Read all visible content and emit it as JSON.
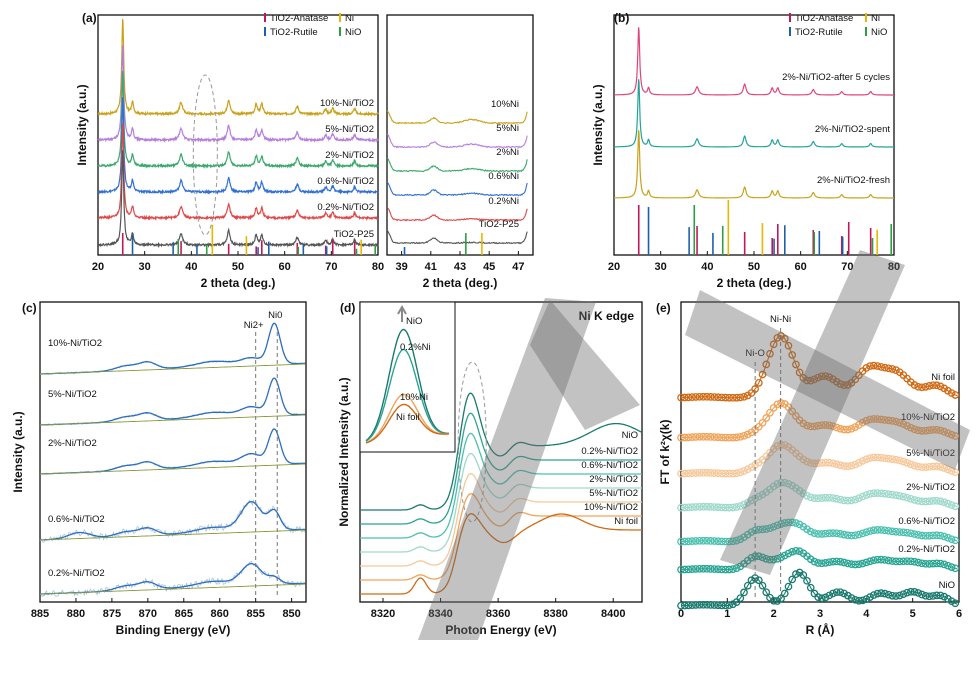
{
  "chart_data": [
    {
      "panel": "(a)",
      "type": "line",
      "xlabel": "2 theta (deg.)",
      "ylabel": "Intensity (a.u.)",
      "xlim": [
        20,
        80
      ],
      "xticks": [
        20,
        30,
        40,
        50,
        60,
        70,
        80
      ],
      "legend": [
        "TiO2-Anatase",
        "Ni",
        "TiO2-Rutile",
        "NiO"
      ],
      "series": [
        {
          "name": "10%-Ni/TiO2",
          "color": "#c9a21a"
        },
        {
          "name": "5%-Ni/TiO2",
          "color": "#b57edc"
        },
        {
          "name": "2%-Ni/TiO2",
          "color": "#3aa86b"
        },
        {
          "name": "0.6%-Ni/TiO2",
          "color": "#2f6fd6"
        },
        {
          "name": "0.2%-Ni/TiO2",
          "color": "#e04848"
        },
        {
          "name": "TiO2-P25",
          "color": "#555555"
        }
      ],
      "ref_lines": {
        "anatase": [
          25.3,
          37.8,
          48.0,
          53.9,
          55.1,
          62.7,
          68.8,
          70.3,
          75.0
        ],
        "rutile": [
          27.4,
          36.1,
          41.2,
          54.3,
          56.6,
          64.0,
          69.0
        ],
        "Ni": [
          44.5,
          51.8,
          76.4
        ],
        "NiO": [
          37.2,
          43.3,
          62.9,
          75.4,
          79.4
        ]
      }
    },
    {
      "panel": "(a-zoom)",
      "type": "line",
      "xlabel": "2 theta (deg.)",
      "xlim": [
        38,
        48
      ],
      "xticks": [
        39,
        41,
        43,
        45,
        47
      ],
      "series": [
        "10%Ni",
        "5%Ni",
        "2%Ni",
        "0.6%Ni",
        "0.2%Ni",
        "TiO2-P25"
      ]
    },
    {
      "panel": "(b)",
      "type": "line",
      "xlabel": "2 theta (deg.)",
      "ylabel": "Intensity (a.u.)",
      "xlim": [
        20,
        80
      ],
      "xticks": [
        20,
        30,
        40,
        50,
        60,
        70,
        80
      ],
      "legend": [
        "TiO2-Anatase",
        "Ni",
        "TiO2-Rutile",
        "NiO"
      ],
      "series": [
        {
          "name": "2%-Ni/TiO2-after 5 cycles",
          "color": "#e0457a"
        },
        {
          "name": "2%-Ni/TiO2-spent",
          "color": "#22a39a"
        },
        {
          "name": "2%-Ni/TiO2-fresh",
          "color": "#c9a21a"
        }
      ]
    },
    {
      "panel": "(c)",
      "type": "line",
      "xlabel": "Binding Energy (eV)",
      "ylabel": "Intensity (a.u.)",
      "xlim": [
        885,
        848
      ],
      "xticks": [
        885,
        880,
        875,
        870,
        865,
        860,
        855,
        850
      ],
      "markers": [
        {
          "label": "Ni2+",
          "x": 855.0
        },
        {
          "label": "Ni0",
          "x": 852.0
        }
      ],
      "series": [
        "10%-Ni/TiO2",
        "5%-Ni/TiO2",
        "2%-Ni/TiO2",
        "0.6%-Ni/TiO2",
        "0.2%-Ni/TiO2"
      ]
    },
    {
      "panel": "(d)",
      "type": "line",
      "title": "Ni K edge",
      "xlabel": "Photon Energy (eV)",
      "ylabel": "Normalized Intensity (a.u.)",
      "xlim": [
        8312,
        8410
      ],
      "xticks": [
        8320,
        8340,
        8360,
        8380,
        8400
      ],
      "series": [
        {
          "name": "NiO",
          "color": "#1a7a6e"
        },
        {
          "name": "0.2%-Ni/TiO2",
          "color": "#2aa593"
        },
        {
          "name": "0.6%-Ni/TiO2",
          "color": "#4cc0ae"
        },
        {
          "name": "2%-Ni/TiO2",
          "color": "#9fd9cb"
        },
        {
          "name": "5%-Ni/TiO2",
          "color": "#f6c89a"
        },
        {
          "name": "10%-Ni/TiO2",
          "color": "#f0a35a"
        },
        {
          "name": "Ni foil",
          "color": "#d06a14"
        }
      ],
      "inset_labels": [
        "NiO",
        "0.2%Ni",
        "10%Ni",
        "Ni foil"
      ]
    },
    {
      "panel": "(e)",
      "type": "line",
      "xlabel": "R (Å)",
      "ylabel": "FT of k²χ(k)",
      "xlim": [
        0,
        6
      ],
      "xticks": [
        0,
        1,
        2,
        3,
        4,
        5,
        6
      ],
      "markers": [
        {
          "label": "Ni-O",
          "x": 1.6
        },
        {
          "label": "Ni-Ni",
          "x": 2.15
        }
      ],
      "series": [
        {
          "name": "Ni foil",
          "color": "#d06a14"
        },
        {
          "name": "10%-Ni/TiO2",
          "color": "#f0a35a"
        },
        {
          "name": "5%-Ni/TiO2",
          "color": "#f6c89a"
        },
        {
          "name": "2%-Ni/TiO2",
          "color": "#9fd9cb"
        },
        {
          "name": "0.6%-Ni/TiO2",
          "color": "#4cc0ae"
        },
        {
          "name": "0.2%-Ni/TiO2",
          "color": "#2aa593"
        },
        {
          "name": "NiO",
          "color": "#1a7a6e"
        }
      ]
    }
  ],
  "colors": {
    "anatase": "#c2185b",
    "rutile": "#1f5fa8",
    "ni": "#e6b800",
    "nio": "#2e9e44"
  }
}
